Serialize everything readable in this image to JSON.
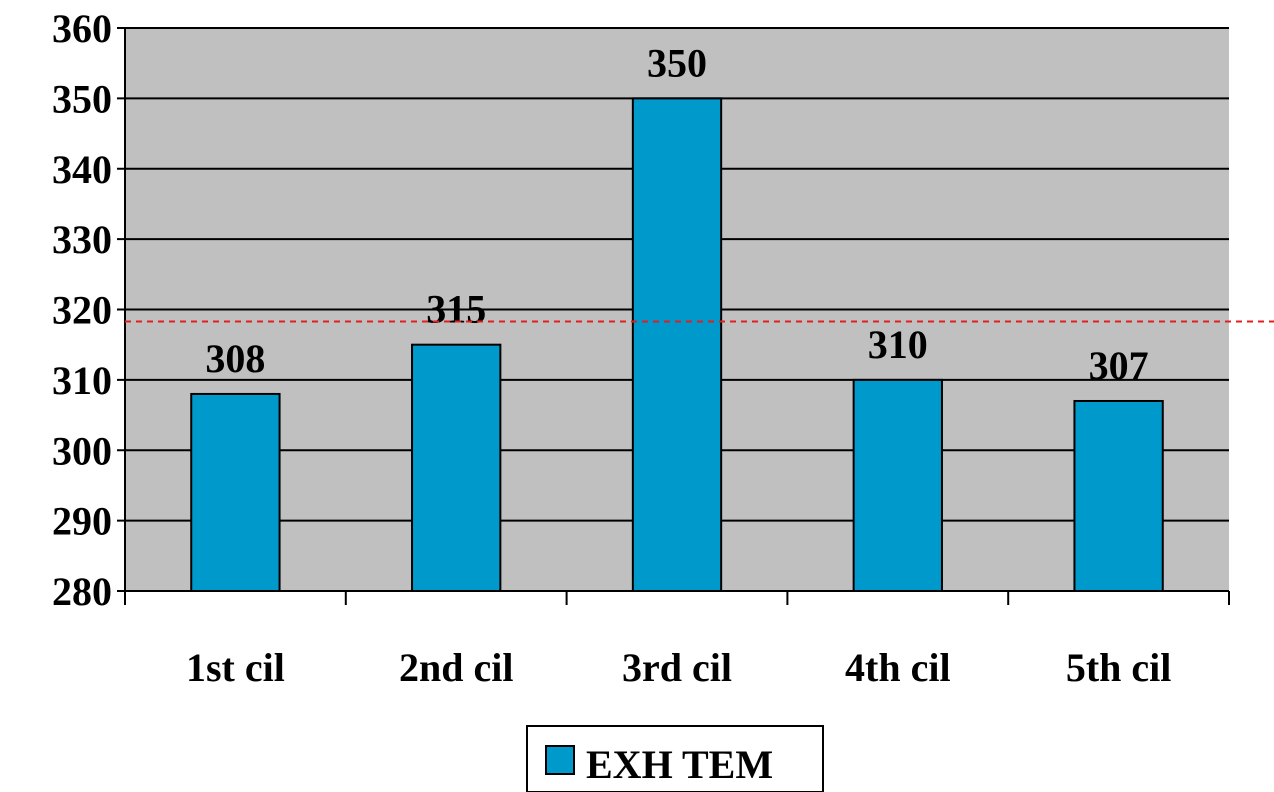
{
  "chart_data": {
    "type": "bar",
    "categories": [
      "1st cil",
      "2nd cil",
      "3rd cil",
      "4th cil",
      "5th cil"
    ],
    "series": [
      {
        "name": "EXH TEM",
        "values": [
          308,
          315,
          350,
          310,
          307
        ],
        "color": "#0099CC"
      }
    ],
    "data_labels": [
      "308",
      "315",
      "350",
      "310",
      "307"
    ],
    "y_ticks": [
      "280",
      "290",
      "300",
      "310",
      "320",
      "330",
      "340",
      "350",
      "360"
    ],
    "ylim": [
      280,
      360
    ],
    "grid": true,
    "legend": "bottom",
    "reference_line": {
      "y": 318.3,
      "style": "dashed",
      "color": "#E02020"
    },
    "plot_background": "#C0C0C0"
  }
}
